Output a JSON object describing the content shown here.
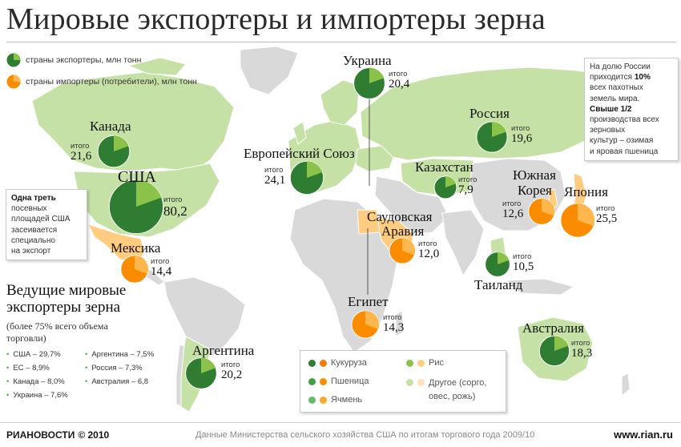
{
  "title": "Мировые экспортеры и импортеры зерна",
  "legend": {
    "exporters": "страны экспортеры, млн тонн",
    "importers": "страны импортеры (потребители), млн тонн"
  },
  "total_label": "итого",
  "colors": {
    "exporter_dark": "#2e7d32",
    "exporter_mid": "#43a047",
    "exporter_light": "#8bc34a",
    "importer_dark": "#f57c00",
    "importer_mid": "#fb8c00",
    "importer_light": "#ffb74d",
    "exporter_land": "#c5e1a5",
    "importer_land": "#ffcc80",
    "other_land": "#d9d9d9"
  },
  "countries": [
    {
      "id": "canada",
      "name": "Канада",
      "total": "21,6",
      "role": "exporter",
      "value": 21.6
    },
    {
      "id": "usa",
      "name": "США",
      "total": "80,2",
      "role": "exporter",
      "value": 80.2
    },
    {
      "id": "mexico",
      "name": "Мексика",
      "total": "14,4",
      "role": "importer",
      "value": 14.4
    },
    {
      "id": "argentina",
      "name": "Аргентина",
      "total": "20,2",
      "role": "exporter",
      "value": 20.2
    },
    {
      "id": "eu",
      "name": "Европейский Союз",
      "total": "24,1",
      "role": "exporter",
      "value": 24.1
    },
    {
      "id": "ukraine",
      "name": "Украина",
      "total": "20,4",
      "role": "exporter",
      "value": 20.4
    },
    {
      "id": "russia",
      "name": "Россия",
      "total": "19,6",
      "role": "exporter",
      "value": 19.6
    },
    {
      "id": "kazakhstan",
      "name": "Казахстан",
      "total": "7,9",
      "role": "exporter",
      "value": 7.9
    },
    {
      "id": "saudi",
      "name": "Саудовская Аравия",
      "name_line1": "Саудовская",
      "name_line2": "Аравия",
      "total": "12,0",
      "role": "importer",
      "value": 12.0
    },
    {
      "id": "egypt",
      "name": "Египет",
      "total": "14,3",
      "role": "importer",
      "value": 14.3
    },
    {
      "id": "korea",
      "name": "Южная Корея",
      "name_line1": "Южная",
      "name_line2": "Корея",
      "total": "12,6",
      "role": "importer",
      "value": 12.6
    },
    {
      "id": "japan",
      "name": "Япония",
      "total": "25,5",
      "role": "importer",
      "value": 25.5
    },
    {
      "id": "thailand",
      "name": "Таиланд",
      "total": "10,5",
      "role": "exporter",
      "value": 10.5
    },
    {
      "id": "australia",
      "name": "Австралия",
      "total": "18,3",
      "role": "exporter",
      "value": 18.3
    }
  ],
  "usa_note": {
    "bold": "Одна треть",
    "lines": [
      "посевных",
      "площадей США",
      "засеивается",
      "специально",
      "на экспорт"
    ]
  },
  "russia_note": {
    "l1": "На долю России",
    "l2a": "приходится ",
    "l2b": "10%",
    "l3": "всех пахотных",
    "l4": "земель мира.",
    "l5": "Свыше 1/2",
    "l6": "производства всех",
    "l7": "зерновых",
    "l8": "культур – озимая",
    "l9": "и яровая пшеница"
  },
  "exporters_block": {
    "title_line1": "Ведущие мировые",
    "title_line2": "экспортеры зерна",
    "sub_line1": "(более 75% всего объема",
    "sub_line2": "торговли)",
    "left": [
      "США – 29,7%",
      "ЕС – 8,9%",
      "Канада – 8,0%",
      "Украина – 7,6%"
    ],
    "right": [
      "Аргентина – 7,5%",
      "Россия – 7,3%",
      "Австралия – 6,8"
    ]
  },
  "crop_legend": {
    "corn": "Кукуруза",
    "wheat": "Пшеница",
    "barley": "Ячмень",
    "rice": "Рис",
    "other_line1": "Другое (сорго,",
    "other_line2": "овес, рожь)"
  },
  "footer": {
    "brand_ria": "РИА",
    "brand_nov": "НОВОСТИ",
    "copyright": "© 2010",
    "source": "Данные Министерства сельского хозяйства США по итогам торгового года 2009/10",
    "site": "www.rian.ru"
  }
}
